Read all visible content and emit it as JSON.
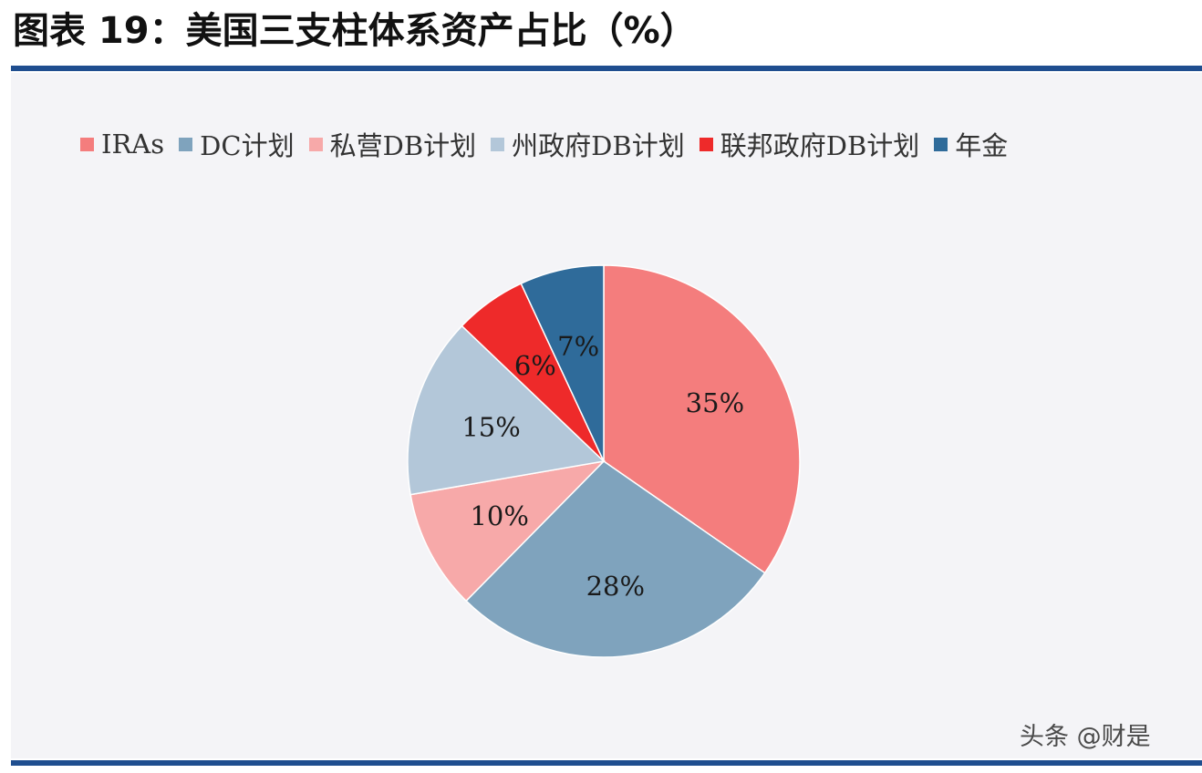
{
  "figure": {
    "title": "图表 19：美国三支柱体系资产占比（%）"
  },
  "chart_data": {
    "type": "pie",
    "title": "",
    "legend_position": "top",
    "categories": [
      "IRAs",
      "DC计划",
      "私营DB计划",
      "州政府DB计划",
      "联邦政府DB计划",
      "年金"
    ],
    "values": [
      35,
      28,
      10,
      15,
      6,
      7
    ],
    "value_labels": [
      "35%",
      "28%",
      "10%",
      "15%",
      "6%",
      "7%"
    ],
    "colors": [
      "#f47d7d",
      "#7fa3bd",
      "#f7a9a9",
      "#b3c7d9",
      "#ee2a2a",
      "#2f6b9a"
    ],
    "label_color": "#1a1a1a"
  },
  "watermark": {
    "text": "头条 @财是"
  }
}
